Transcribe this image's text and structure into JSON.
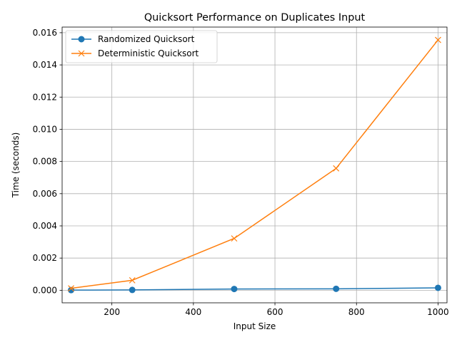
{
  "chart_data": {
    "type": "line",
    "title": "Quicksort Performance on Duplicates Input",
    "xlabel": "Input Size",
    "ylabel": "Time (seconds)",
    "xlim": [
      78,
      1022
    ],
    "ylim": [
      -0.00078,
      0.01635
    ],
    "xticks": [
      200,
      400,
      600,
      800,
      1000
    ],
    "xtick_labels": [
      "200",
      "400",
      "600",
      "800",
      "1000"
    ],
    "yticks": [
      0,
      0.002,
      0.004,
      0.006,
      0.008,
      0.01,
      0.012,
      0.014,
      0.016
    ],
    "ytick_labels": [
      "0.000",
      "0.002",
      "0.004",
      "0.006",
      "0.008",
      "0.010",
      "0.012",
      "0.014",
      "0.016"
    ],
    "grid": true,
    "legend_position": "top-left",
    "series": [
      {
        "name": "Randomized Quicksort",
        "color": "#1f77b4",
        "marker": "circle",
        "x": [
          100,
          250,
          500,
          750,
          1000
        ],
        "y": [
          1e-05,
          2e-05,
          8e-05,
          9e-05,
          0.00015
        ]
      },
      {
        "name": "Deterministic Quicksort",
        "color": "#ff7f0e",
        "marker": "x",
        "x": [
          100,
          250,
          500,
          750,
          1000
        ],
        "y": [
          0.00012,
          0.00062,
          0.00322,
          0.00757,
          0.01555
        ]
      }
    ]
  }
}
